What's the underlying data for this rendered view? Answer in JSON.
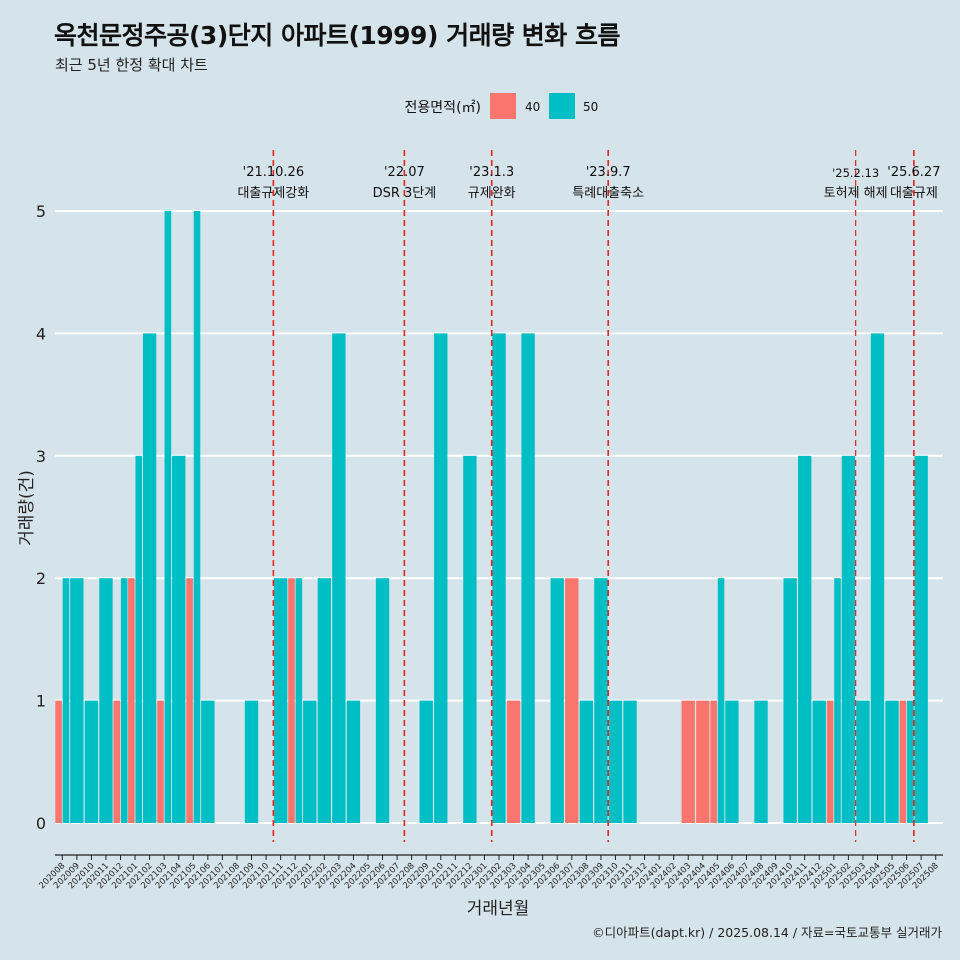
{
  "chart_data": {
    "type": "bar",
    "title": "옥천문정주공(3)단지 아파트(1999) 거래량 변화 흐름",
    "subtitle": "최근 5년 한정 확대 차트",
    "xlabel": "거래년월",
    "ylabel": "거래량(건)",
    "ylim": [
      0,
      5
    ],
    "yticks": [
      "0",
      "1",
      "2",
      "3",
      "4",
      "5"
    ],
    "grid": true,
    "legend": {
      "title": "전용면적(㎡)",
      "position": "top",
      "entries": [
        "40",
        "50"
      ]
    },
    "colors": {
      "40": "#f8766d",
      "50": "#00bfc4",
      "background": "#d5e3ea",
      "grid": "#ffffff",
      "event_line": "#e8221d"
    },
    "categories": [
      "202008",
      "202009",
      "202010",
      "202011",
      "202012",
      "202101",
      "202102",
      "202103",
      "202104",
      "202105",
      "202106",
      "202107",
      "202108",
      "202109",
      "202110",
      "202111",
      "202112",
      "202201",
      "202202",
      "202203",
      "202204",
      "202205",
      "202206",
      "202207",
      "202208",
      "202209",
      "202210",
      "202211",
      "202212",
      "202301",
      "202302",
      "202303",
      "202304",
      "202305",
      "202306",
      "202307",
      "202308",
      "202309",
      "202310",
      "202311",
      "202312",
      "202401",
      "202402",
      "202403",
      "202404",
      "202405",
      "202406",
      "202407",
      "202408",
      "202409",
      "202410",
      "202411",
      "202412",
      "202501",
      "202502",
      "202503",
      "202504",
      "202505",
      "202506",
      "202507",
      "202508"
    ],
    "series": [
      {
        "name": "40",
        "values": [
          1,
          0,
          0,
          0,
          1,
          2,
          0,
          1,
          0,
          2,
          0,
          0,
          0,
          0,
          0,
          0,
          2,
          0,
          0,
          0,
          0,
          0,
          0,
          0,
          0,
          0,
          0,
          0,
          0,
          0,
          0,
          1,
          0,
          0,
          0,
          2,
          0,
          0,
          0,
          0,
          0,
          0,
          0,
          1,
          1,
          1,
          0,
          0,
          0,
          0,
          0,
          0,
          0,
          1,
          0,
          0,
          0,
          0,
          1,
          0,
          0
        ]
      },
      {
        "name": "50",
        "values": [
          2,
          2,
          1,
          2,
          2,
          3,
          4,
          5,
          3,
          5,
          1,
          0,
          0,
          1,
          0,
          2,
          2,
          1,
          2,
          4,
          1,
          0,
          2,
          0,
          0,
          1,
          4,
          0,
          3,
          0,
          4,
          0,
          4,
          0,
          2,
          0,
          1,
          2,
          1,
          1,
          0,
          0,
          0,
          0,
          0,
          2,
          1,
          0,
          1,
          0,
          2,
          3,
          1,
          2,
          3,
          1,
          4,
          1,
          1,
          3,
          0
        ]
      }
    ],
    "annotations": [
      {
        "date": "'21.10.26",
        "label": "대출규제강화",
        "after": "202110"
      },
      {
        "date": "'22.07",
        "label": "DSR 3단계",
        "after": "202207"
      },
      {
        "date": "'23.1.3",
        "label": "규제완화",
        "after": "202301"
      },
      {
        "date": "'23.9.7",
        "label": "특례대출축소",
        "after": "202309"
      },
      {
        "date": "'25.2.13",
        "label": "토허제 해제",
        "after": "202502"
      },
      {
        "date": "'25.6.27",
        "label": "대출규제",
        "after": "202506"
      }
    ],
    "caption": "©디아파트(dapt.kr) / 2025.08.14 / 자료=국토교통부 실거래가"
  }
}
